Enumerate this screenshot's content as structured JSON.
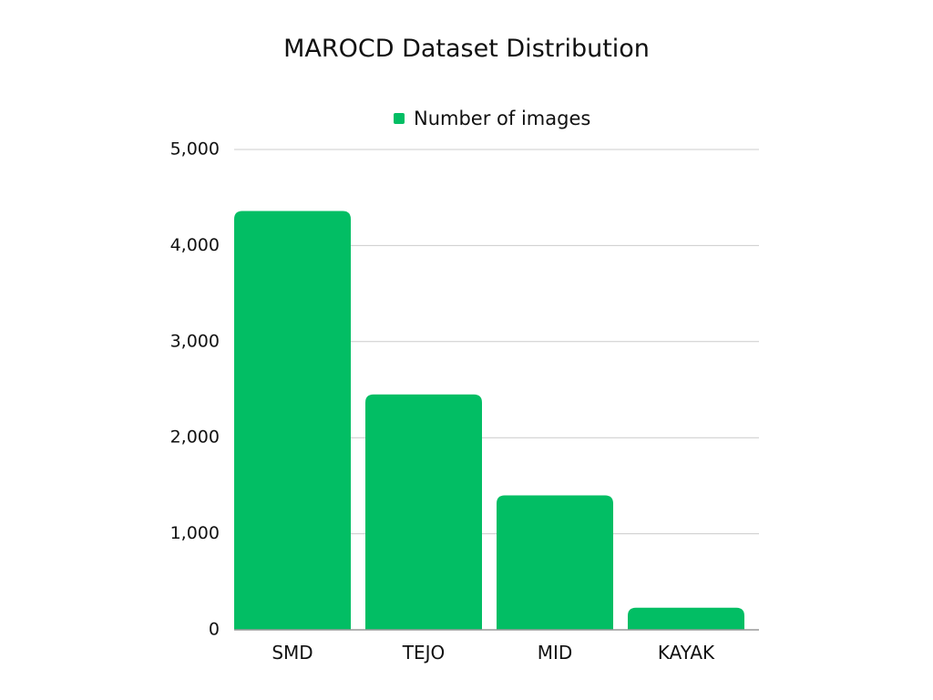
{
  "chart_data": {
    "type": "bar",
    "title": "MAROCD Dataset Distribution",
    "categories": [
      "SMD",
      "TEJO",
      "MID",
      "KAYAK"
    ],
    "series": [
      {
        "name": "Number of images",
        "values": [
          4360,
          2450,
          1400,
          230
        ]
      }
    ],
    "ylim": [
      0,
      5000
    ],
    "yticks": [
      "0",
      "1,000",
      "2,000",
      "3,000",
      "4,000",
      "5,000"
    ],
    "ytick_values": [
      0,
      1000,
      2000,
      3000,
      4000,
      5000
    ],
    "grid": true,
    "legend_position": "top-center",
    "colors": {
      "bar": "#02BE64",
      "grid": "#cccccc",
      "axis": "#999999"
    }
  }
}
